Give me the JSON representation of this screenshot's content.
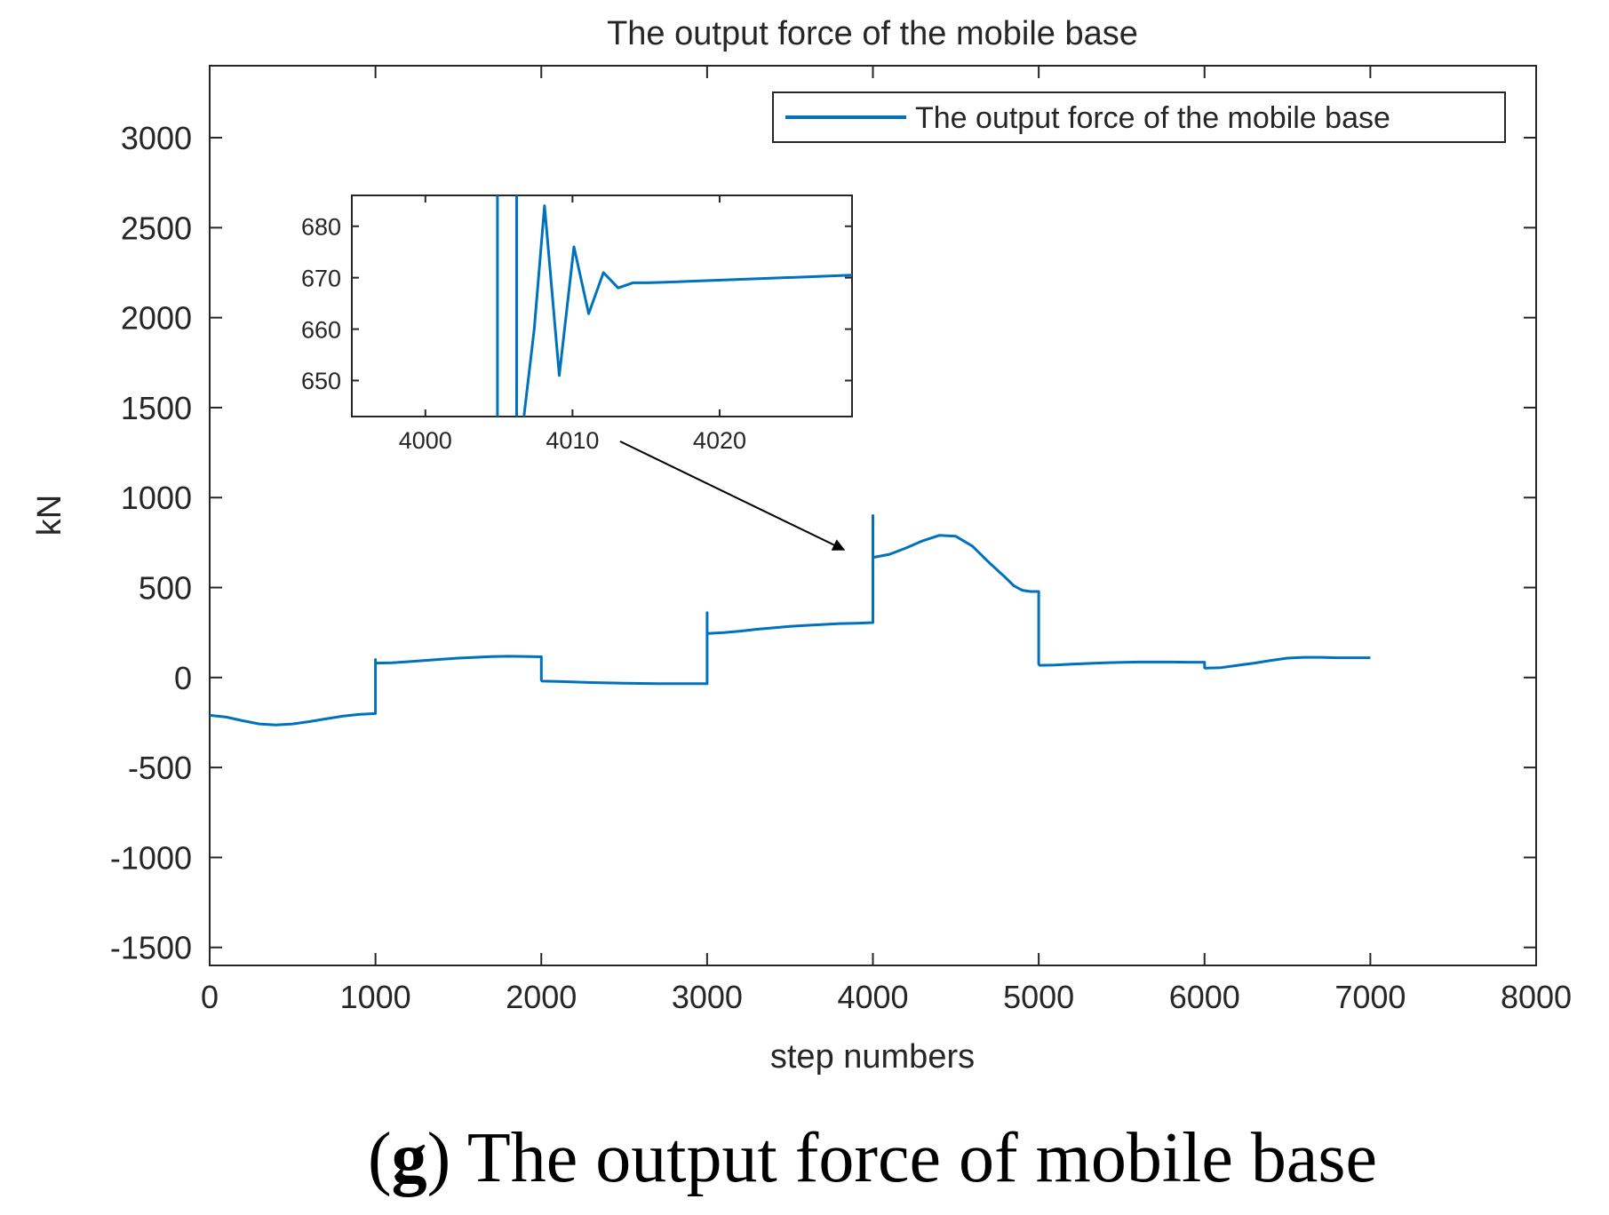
{
  "chart_data": [
    {
      "type": "line",
      "title": "The output force of the mobile base",
      "xlabel": "step numbers",
      "ylabel": "kN",
      "xlim": [
        0,
        8000
      ],
      "ylim": [
        -1600,
        3400
      ],
      "xticks": [
        "0",
        "1000",
        "2000",
        "3000",
        "4000",
        "5000",
        "6000",
        "7000",
        "8000"
      ],
      "xtick_values": [
        0,
        1000,
        2000,
        3000,
        4000,
        5000,
        6000,
        7000,
        8000
      ],
      "yticks": [
        "-1500",
        "-1000",
        "-500",
        "0",
        "500",
        "1000",
        "1500",
        "2000",
        "2500",
        "3000"
      ],
      "ytick_values": [
        -1500,
        -1000,
        -500,
        0,
        500,
        1000,
        1500,
        2000,
        2500,
        3000
      ],
      "grid": false,
      "legend_position": "top-right",
      "series": [
        {
          "name": "The output force of the mobile base",
          "color": "#0072BD",
          "x": [
            0,
            100,
            200,
            300,
            400,
            500,
            600,
            700,
            800,
            900,
            1000,
            1000,
            1000,
            1005,
            1100,
            1200,
            1300,
            1400,
            1500,
            1600,
            1700,
            1800,
            1900,
            2000,
            2000,
            2005,
            2100,
            2200,
            2300,
            2400,
            2500,
            2600,
            2700,
            2800,
            2900,
            3000,
            3000,
            3000,
            3005,
            3100,
            3200,
            3300,
            3400,
            3500,
            3600,
            3700,
            3800,
            3900,
            4000,
            4000,
            4000,
            4005,
            4100,
            4200,
            4300,
            4400,
            4500,
            4600,
            4700,
            4800,
            4850,
            4900,
            4950,
            5000,
            5000,
            5005,
            5100,
            5200,
            5300,
            5400,
            5500,
            5600,
            5700,
            5800,
            5900,
            6000,
            6000,
            6005,
            6100,
            6200,
            6300,
            6400,
            6500,
            6600,
            6700,
            6800,
            6900,
            7000
          ],
          "y": [
            -210,
            -220,
            -240,
            -258,
            -264,
            -258,
            -245,
            -230,
            -215,
            -205,
            -200,
            100,
            80,
            80,
            82,
            88,
            95,
            102,
            108,
            112,
            116,
            118,
            117,
            115,
            -15,
            -20,
            -22,
            -25,
            -28,
            -30,
            -32,
            -33,
            -34,
            -34,
            -34,
            -34,
            360,
            245,
            245,
            250,
            258,
            268,
            276,
            284,
            290,
            295,
            300,
            302,
            305,
            900,
            665,
            668,
            685,
            720,
            760,
            790,
            785,
            730,
            640,
            555,
            510,
            485,
            478,
            478,
            75,
            68,
            70,
            74,
            78,
            82,
            84,
            86,
            86,
            86,
            85,
            85,
            55,
            52,
            55,
            68,
            80,
            95,
            108,
            112,
            112,
            110,
            110,
            110
          ]
        }
      ]
    },
    {
      "type": "line",
      "title": "",
      "xlim": [
        3995,
        4029
      ],
      "ylim": [
        643,
        686
      ],
      "xticks": [
        "4000",
        "4010",
        "4020"
      ],
      "xtick_values": [
        4000,
        4010,
        4020
      ],
      "yticks": [
        "650",
        "660",
        "670",
        "680"
      ],
      "ytick_values": [
        650,
        660,
        670,
        680
      ],
      "series": [
        {
          "color": "#0072BD",
          "x": [
            4004.9,
            4004.9,
            4006.2,
            4006.2,
            4006.7,
            4007.4,
            4008.1,
            4009.1,
            4010.1,
            4011.1,
            4012.1,
            4013.1,
            4014.1,
            4015.1,
            4016.1,
            4029
          ],
          "y": [
            600,
            720,
            720,
            600,
            643,
            660,
            684,
            651,
            676,
            663,
            671,
            668,
            669,
            669,
            669.1,
            670.5
          ]
        }
      ]
    }
  ],
  "caption": {
    "letter": "g",
    "text": " The output force of mobile base"
  }
}
